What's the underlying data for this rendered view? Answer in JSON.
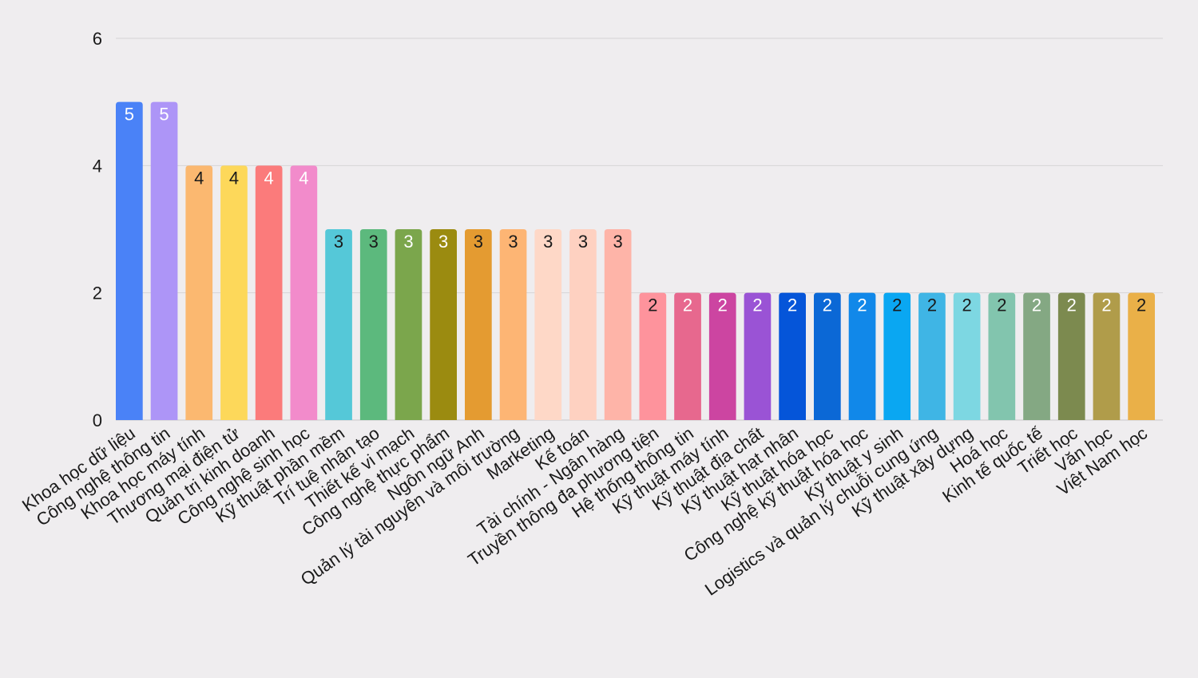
{
  "chart_data": {
    "type": "bar",
    "title": "",
    "xlabel": "",
    "ylabel": "",
    "ylim": [
      0,
      6
    ],
    "yticks": [
      0,
      2,
      4,
      6
    ],
    "grid": true,
    "categories": [
      "Khoa học dữ liệu",
      "Công nghệ thông tin",
      "Khoa học máy tính",
      "Thương mại điện tử",
      "Quản trị kinh doanh",
      "Công nghệ sinh học",
      "Kỹ thuật phần mềm",
      "Trí tuệ nhân tạo",
      "Thiết kế vi mạch",
      "Công nghệ thực phẩm",
      "Ngôn ngữ Anh",
      "Quản lý tài nguyên và môi trường",
      "Marketing",
      "Kế toán",
      "Tài chính - Ngân hàng",
      "Truyền thông đa phương tiện",
      "Hệ thống thông tin",
      "Kỹ thuật máy tính",
      "Kỹ thuật địa chất",
      "Kỹ thuật hạt nhân",
      "Kỹ thuật hóa học",
      "Công nghệ kỹ thuật hóa học",
      "Kỹ thuật y sinh",
      "Logistics và quản lý chuỗi cung ứng",
      "Kỹ thuật xây dựng",
      "Hoá học",
      "Kinh tế quốc tế",
      "Triết học",
      "Văn học",
      "Việt Nam học"
    ],
    "values": [
      5,
      5,
      4,
      4,
      4,
      4,
      3,
      3,
      3,
      3,
      3,
      3,
      3,
      3,
      3,
      2,
      2,
      2,
      2,
      2,
      2,
      2,
      2,
      2,
      2,
      2,
      2,
      2,
      2,
      2
    ],
    "bar_colors": [
      "#4a82f7",
      "#ad95f7",
      "#fbb870",
      "#fdd85a",
      "#fb7b7b",
      "#f28bcb",
      "#55c8d8",
      "#5cb97d",
      "#7ba64c",
      "#9b8b10",
      "#e49b31",
      "#fdb574",
      "#fed8c7",
      "#fed1c1",
      "#feb4a8",
      "#fe939c",
      "#e7688e",
      "#cc45a1",
      "#9a53d5",
      "#0555d9",
      "#0b68d6",
      "#1188e9",
      "#0aa7f2",
      "#3fb5e5",
      "#7dd7e2",
      "#82c5ae",
      "#84a883",
      "#7c8a4f",
      "#b09c4a",
      "#eab048"
    ],
    "label_colors": [
      "#ffffff",
      "#ffffff",
      "#1a1a1a",
      "#1a1a1a",
      "#ffffff",
      "#ffffff",
      "#1a1a1a",
      "#1a1a1a",
      "#ffffff",
      "#ffffff",
      "#1a1a1a",
      "#1a1a1a",
      "#1a1a1a",
      "#1a1a1a",
      "#1a1a1a",
      "#1a1a1a",
      "#ffffff",
      "#ffffff",
      "#ffffff",
      "#ffffff",
      "#ffffff",
      "#ffffff",
      "#1a1a1a",
      "#1a1a1a",
      "#1a1a1a",
      "#1a1a1a",
      "#ffffff",
      "#ffffff",
      "#ffffff",
      "#1a1a1a"
    ],
    "text_color": "#1a1a1a",
    "grid_color": "#d6d4d6"
  }
}
